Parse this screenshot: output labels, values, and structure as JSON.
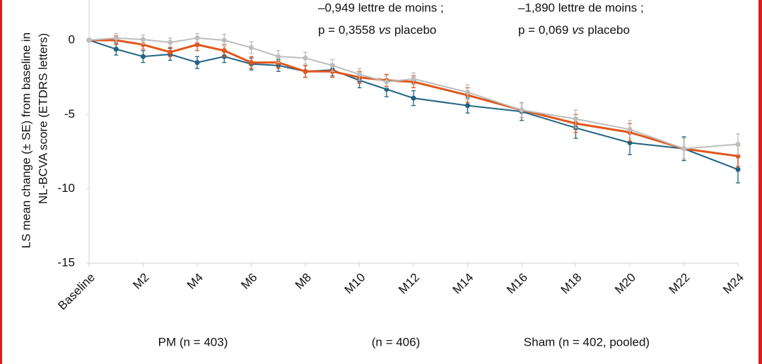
{
  "chart_data": {
    "type": "line",
    "y_label_lines": [
      "LS mean change (± SE) from baseline in",
      "NL-BCVA score (ETDRS letters)"
    ],
    "annotations": [
      {
        "line1": "–0,949 lettre de moins ;",
        "p": "p = 0,3558",
        "vs": "vs",
        "rest": "placebo"
      },
      {
        "line1": "–1,890 lettre de moins ;",
        "p": "p = 0,069",
        "vs": "vs",
        "rest": "placebo"
      }
    ],
    "x": [
      0,
      1,
      2,
      3,
      4,
      5,
      6,
      7,
      8,
      9,
      10,
      11,
      12,
      14,
      16,
      18,
      20,
      22,
      24
    ],
    "xlim": [
      0,
      24
    ],
    "xticks": [
      {
        "value": 0,
        "label": "Baseline"
      },
      {
        "value": 2,
        "label": "M2"
      },
      {
        "value": 4,
        "label": "M4"
      },
      {
        "value": 6,
        "label": "M6"
      },
      {
        "value": 8,
        "label": "M8"
      },
      {
        "value": 10,
        "label": "M10"
      },
      {
        "value": 12,
        "label": "M12"
      },
      {
        "value": 14,
        "label": "M14"
      },
      {
        "value": 16,
        "label": "M16"
      },
      {
        "value": 18,
        "label": "M18"
      },
      {
        "value": 20,
        "label": "M20"
      },
      {
        "value": 22,
        "label": "M22"
      },
      {
        "value": 24,
        "label": "M24"
      }
    ],
    "ylim": [
      -15,
      5
    ],
    "yticks": [
      0,
      -5,
      -10,
      -15
    ],
    "grid": false,
    "series": [
      {
        "name": "PM (n = 403)",
        "color": "#1e6382",
        "values": [
          0,
          -0.6,
          -1.1,
          -0.95,
          -1.5,
          -1.1,
          -1.6,
          -1.7,
          -2.1,
          -2.0,
          -2.7,
          -3.3,
          -3.9,
          -4.4,
          -4.8,
          -5.9,
          -6.9,
          -7.3,
          -8.7
        ],
        "errors": [
          0,
          0.4,
          0.4,
          0.4,
          0.4,
          0.4,
          0.4,
          0.4,
          0.4,
          0.4,
          0.5,
          0.5,
          0.5,
          0.5,
          0.6,
          0.7,
          0.8,
          0.8,
          0.9
        ]
      },
      {
        "name": "(n = 406)",
        "color": "#e0561b",
        "values": [
          0,
          0.0,
          -0.3,
          -0.8,
          -0.3,
          -0.7,
          -1.5,
          -1.5,
          -2.1,
          -2.1,
          -2.5,
          -2.7,
          -2.8,
          -3.7,
          -4.7,
          -5.6,
          -6.2,
          -7.3,
          -7.8
        ],
        "errors": [
          0,
          0.3,
          0.3,
          0.3,
          0.4,
          0.4,
          0.4,
          0.4,
          0.4,
          0.4,
          0.4,
          0.4,
          0.4,
          0.5,
          0.5,
          0.6,
          0.6,
          0.7,
          0.7
        ]
      },
      {
        "name": "Sham (n = 402, pooled)",
        "color": "#bdbdbd",
        "values": [
          0,
          0.15,
          0.05,
          -0.15,
          0.15,
          0.0,
          -0.5,
          -1.1,
          -1.2,
          -1.7,
          -2.3,
          -2.8,
          -2.6,
          -3.5,
          -4.7,
          -5.3,
          -6.0,
          -7.3,
          -7.0
        ],
        "errors": [
          0,
          0.3,
          0.3,
          0.3,
          0.3,
          0.4,
          0.4,
          0.4,
          0.4,
          0.4,
          0.4,
          0.4,
          0.4,
          0.5,
          0.5,
          0.6,
          0.6,
          0.7,
          0.7
        ]
      }
    ]
  }
}
